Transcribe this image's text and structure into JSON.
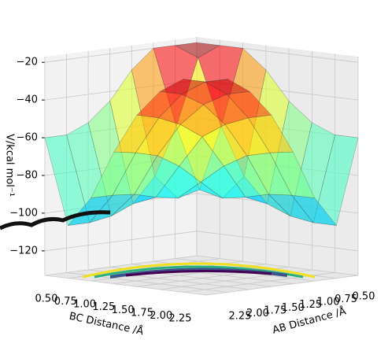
{
  "chart_data": {
    "type": "surface",
    "xlabel": "AB Distance /Å",
    "ylabel": "BC Distance /Å",
    "zlabel": "V/kcal mol⁻¹",
    "colormap": "jet",
    "x": [
      0.5,
      0.75,
      1.0,
      1.25,
      1.5,
      1.75,
      2.0,
      2.25
    ],
    "y": [
      0.5,
      0.75,
      1.0,
      1.25,
      1.5,
      1.75,
      2.0,
      2.25
    ],
    "z": [
      [
        -20,
        -20,
        -20,
        -30,
        -45,
        -55,
        -60,
        -60
      ],
      [
        -20,
        -25,
        -60,
        -85,
        -98,
        -103,
        -105,
        -105
      ],
      [
        -20,
        -60,
        -92,
        -95,
        -93,
        -90,
        -89,
        -89
      ],
      [
        -30,
        -85,
        -95,
        -85,
        -75,
        -68,
        -65,
        -63
      ],
      [
        -45,
        -98,
        -93,
        -75,
        -58,
        -50,
        -45,
        -42
      ],
      [
        -55,
        -103,
        -90,
        -68,
        -50,
        -38,
        -31,
        -28
      ],
      [
        -60,
        -105,
        -89,
        -65,
        -45,
        -31,
        -23,
        -20
      ],
      [
        -60,
        -105,
        -89,
        -63,
        -42,
        -28,
        -20,
        -20
      ]
    ],
    "xlim": [
      0.5,
      2.25
    ],
    "ylim": [
      0.5,
      2.25
    ],
    "zlim": [
      -133,
      -17
    ],
    "xticks": [
      {
        "value": 0.5,
        "label": "0.50"
      },
      {
        "value": 0.75,
        "label": "0.75"
      },
      {
        "value": 1.0,
        "label": "1.00"
      },
      {
        "value": 1.25,
        "label": "1.25"
      },
      {
        "value": 1.5,
        "label": "1.50"
      },
      {
        "value": 1.75,
        "label": "1.75"
      },
      {
        "value": 2.0,
        "label": "2.00"
      },
      {
        "value": 2.25,
        "label": "2.25"
      }
    ],
    "yticks": [
      {
        "value": 0.5,
        "label": "0.50"
      },
      {
        "value": 0.75,
        "label": "0.75"
      },
      {
        "value": 1.0,
        "label": "1.00"
      },
      {
        "value": 1.25,
        "label": "1.25"
      },
      {
        "value": 1.5,
        "label": "1.50"
      },
      {
        "value": 1.75,
        "label": "1.75"
      },
      {
        "value": 2.0,
        "label": "2.00"
      },
      {
        "value": 2.25,
        "label": "2.25"
      }
    ],
    "zticks": [
      {
        "value": -20,
        "label": "−20"
      },
      {
        "value": -40,
        "label": "−40"
      },
      {
        "value": -60,
        "label": "−60"
      },
      {
        "value": -80,
        "label": "−80"
      },
      {
        "value": -100,
        "label": "−100"
      },
      {
        "value": -120,
        "label": "−120"
      }
    ]
  }
}
